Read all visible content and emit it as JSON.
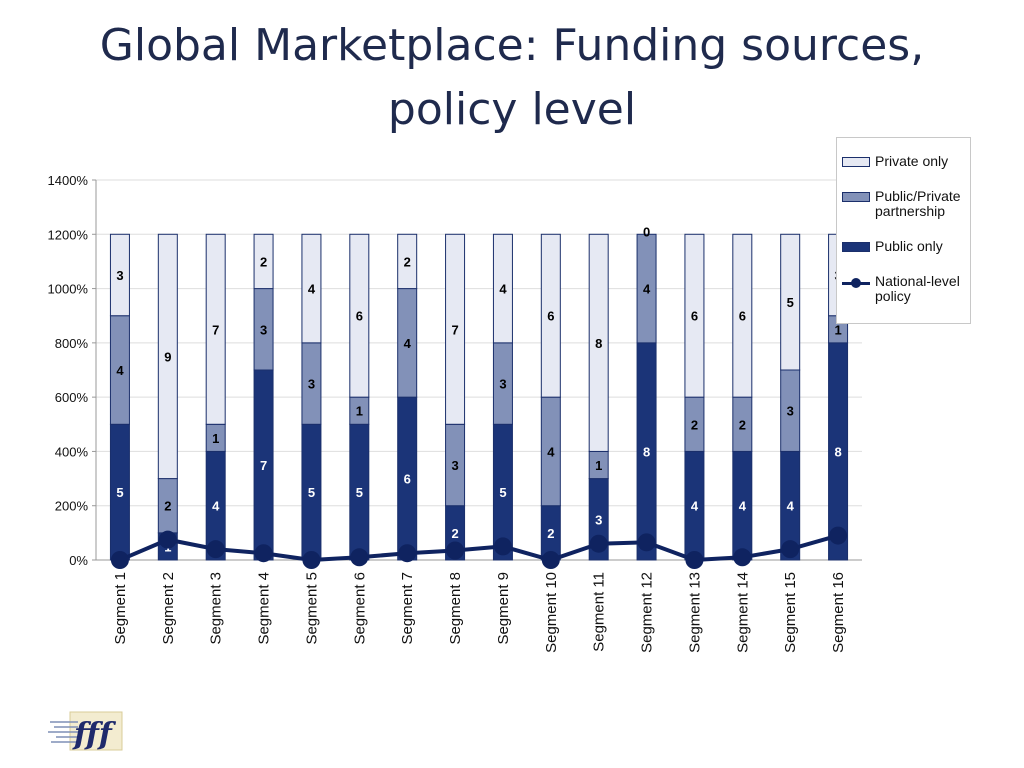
{
  "page": {
    "title_lines": [
      "Global Marketplace: Funding sources,",
      "policy level"
    ],
    "logo_text": "fff"
  },
  "colors": {
    "public_only": "#1b3478",
    "public_private": "#8291b8",
    "private_only": "#e6e9f3",
    "bar_border": "#1b2f6b",
    "national_line": "#0f2360",
    "title": "#1f2a4d"
  },
  "chart_data": {
    "type": "bar",
    "stacked": true,
    "title": "Global Marketplace: Funding sources, policy level",
    "categories": [
      "Segment 1",
      "Segment 2",
      "Segment 3",
      "Segment 4",
      "Segment 5",
      "Segment 6",
      "Segment 7",
      "Segment 8",
      "Segment 9",
      "Segment 10",
      "Segment 11",
      "Segment 12",
      "Segment 13",
      "Segment 14",
      "Segment 15",
      "Segment 16"
    ],
    "y_axis": {
      "min": 0,
      "max": 1400,
      "step": 200,
      "unit": "%",
      "tick_labels": [
        "0%",
        "200%",
        "400%",
        "600%",
        "800%",
        "1000%",
        "1200%",
        "1400%"
      ]
    },
    "series": [
      {
        "name": "Public only",
        "type": "bar",
        "values": [
          500,
          100,
          400,
          700,
          500,
          500,
          600,
          200,
          500,
          200,
          300,
          800,
          400,
          400,
          400,
          800
        ],
        "data_labels": [
          "5",
          "1",
          "4",
          "7",
          "5",
          "5",
          "6",
          "2",
          "5",
          "2",
          "3",
          "8",
          "4",
          "4",
          "4",
          "8"
        ]
      },
      {
        "name": "Public/Private partnership",
        "type": "bar",
        "values": [
          400,
          200,
          100,
          300,
          300,
          100,
          400,
          300,
          300,
          400,
          100,
          400,
          200,
          200,
          300,
          100
        ],
        "data_labels": [
          "4",
          "2",
          "1",
          "3",
          "3",
          "1",
          "4",
          "3",
          "3",
          "4",
          "1",
          "4",
          "2",
          "2",
          "3",
          "1"
        ]
      },
      {
        "name": "Private only",
        "type": "bar",
        "values": [
          300,
          900,
          700,
          200,
          400,
          600,
          200,
          700,
          400,
          600,
          800,
          0,
          600,
          600,
          500,
          300
        ],
        "data_labels": [
          "3",
          "9",
          "7",
          "2",
          "4",
          "6",
          "2",
          "7",
          "4",
          "6",
          "8",
          "0",
          "6",
          "6",
          "5",
          "3"
        ]
      },
      {
        "name": "National-level policy",
        "type": "line",
        "values": [
          0,
          75,
          40,
          25,
          0,
          10,
          25,
          35,
          50,
          0,
          60,
          65,
          0,
          10,
          40,
          90
        ]
      }
    ],
    "legend": {
      "position": "top-right",
      "entries": [
        "Private only",
        "Public/Private partnership",
        "Public only",
        "National-level policy"
      ]
    },
    "grid": true
  }
}
